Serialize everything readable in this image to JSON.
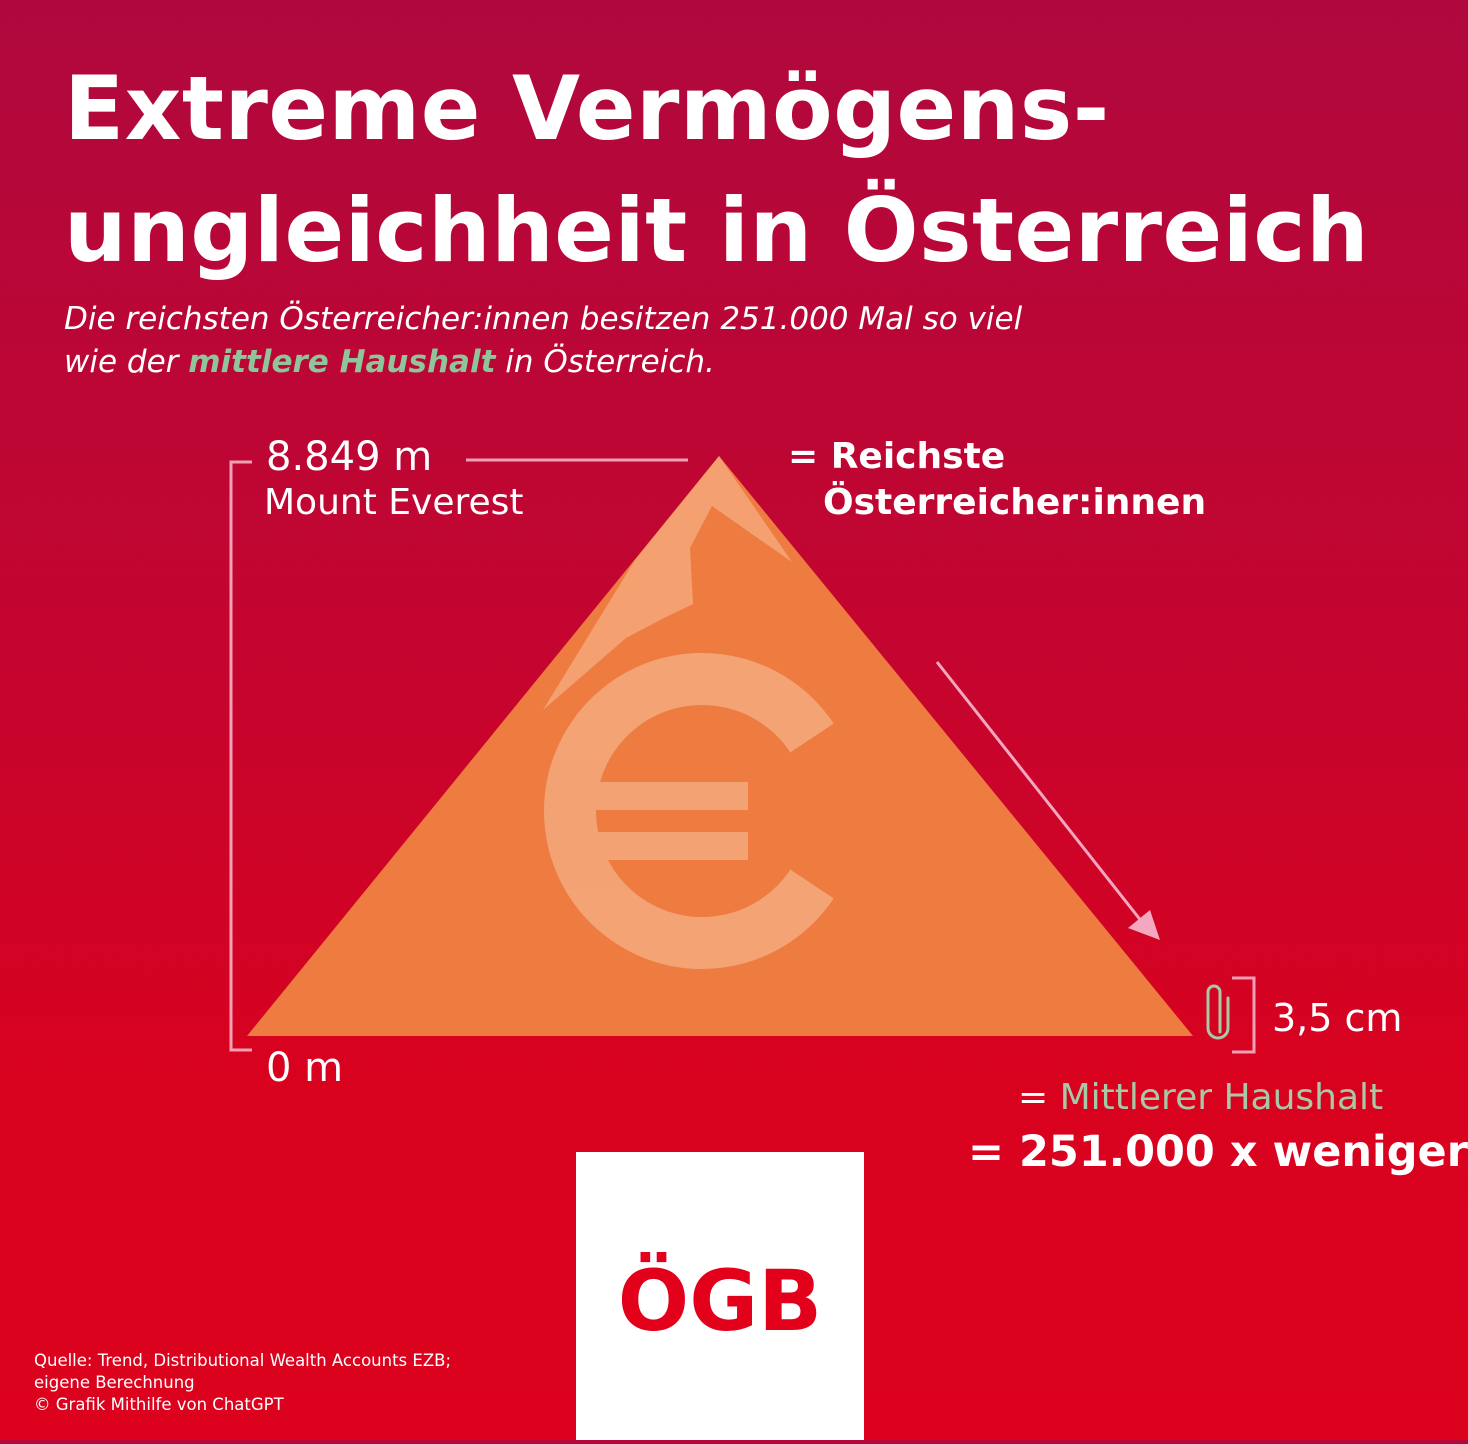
{
  "title": {
    "line1": "Extreme Vermögens-",
    "line2": "ungleichheit in Österreich"
  },
  "subtitle": {
    "part1": "Die reichsten Österreicher:innen besitzen 251.000 Mal so viel",
    "part2": "wie der ",
    "highlight": "mittlere Haushalt",
    "part3": " in Österreich."
  },
  "diagram": {
    "top_height": "8.849 m",
    "mountain_name": "Mount Everest",
    "bottom_height": "0 m",
    "rich_line1": "= Reichste",
    "rich_line2": "Österreicher:innen",
    "paperclip_height": "3,5 cm",
    "median_prefix": "= ",
    "median_label": "Mittlerer Haushalt",
    "factor": "= 251.000 x weniger",
    "euro_symbol": "€"
  },
  "logo": {
    "text": "ÖGB"
  },
  "source": {
    "line1": "Quelle: Trend, Distributional Wealth Accounts EZB;",
    "line2": "eigene Berechnung",
    "line3": "© Grafik Mithilfe von ChatGPT"
  },
  "colors": {
    "background_top": "#b0083e",
    "background_bottom": "#dc021e",
    "mountain": "#ee7c41",
    "highlight_green": "#8ec59a",
    "median_green": "#a7c9a6",
    "logo_red": "#e2001a"
  },
  "icons": {
    "mountain": "mountain-triangle",
    "currency": "euro-icon",
    "paperclip": "paperclip-icon",
    "arrow": "arrow-down-right-icon"
  }
}
